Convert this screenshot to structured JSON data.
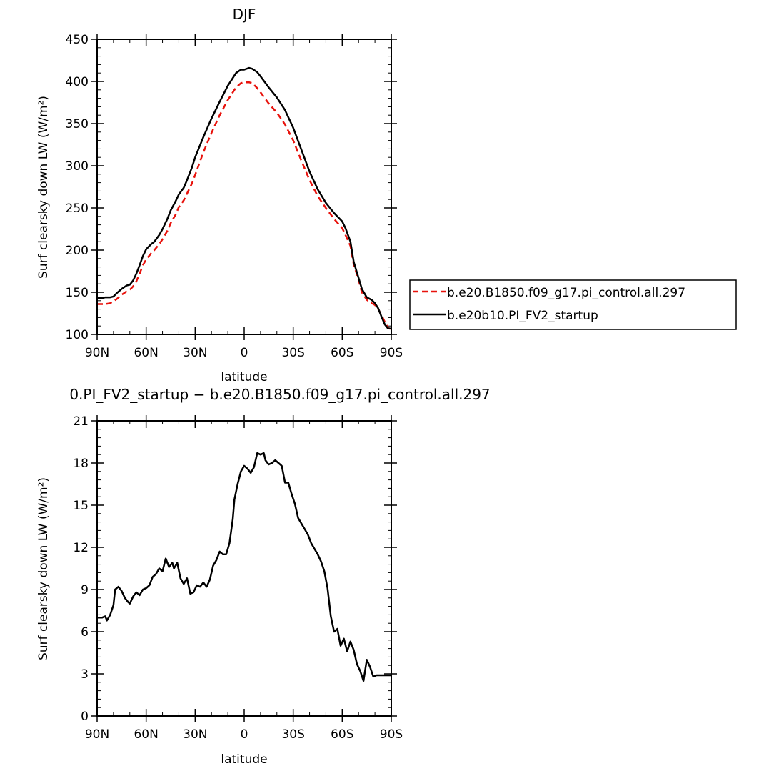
{
  "chart_data": [
    {
      "type": "line",
      "title": "DJF",
      "xlabel": "latitude",
      "ylabel": "Surf clearsky down LW (W/m²)",
      "xlim": [
        90,
        -90
      ],
      "ylim": [
        100,
        450
      ],
      "x_ticks": [
        90,
        60,
        30,
        0,
        -30,
        -60,
        -90
      ],
      "x_tick_labels": [
        "90N",
        "60N",
        "30N",
        "0",
        "30S",
        "60S",
        "90S"
      ],
      "y_ticks": [
        100,
        150,
        200,
        250,
        300,
        350,
        400,
        450
      ],
      "y_tick_labels": [
        "100",
        "150",
        "200",
        "250",
        "300",
        "350",
        "400",
        "450"
      ],
      "legend_position": "right",
      "series": [
        {
          "name": "b.e20.B1850.f09_g17.pi_control.all.297",
          "color": "#e8120c",
          "style": "dashed",
          "x": [
            90,
            85,
            82,
            78,
            75,
            72,
            70,
            68,
            66,
            64,
            62,
            60,
            57,
            55,
            52,
            50,
            47,
            45,
            42,
            40,
            37,
            35,
            32,
            30,
            25,
            20,
            15,
            10,
            5,
            2,
            0,
            -3,
            -5,
            -8,
            -10,
            -15,
            -20,
            -25,
            -30,
            -35,
            -40,
            -45,
            -50,
            -55,
            -60,
            -62,
            -65,
            -67,
            -70,
            -72,
            -75,
            -78,
            -80,
            -82,
            -84,
            -86,
            -88,
            -90
          ],
          "values": [
            136,
            136,
            137,
            142,
            147,
            151,
            153,
            157,
            163,
            172,
            182,
            189,
            196,
            200,
            207,
            213,
            223,
            232,
            242,
            251,
            259,
            267,
            279,
            289,
            316,
            339,
            360,
            378,
            393,
            398,
            399,
            399,
            398,
            392,
            387,
            374,
            363,
            349,
            330,
            306,
            283,
            264,
            250,
            237,
            226,
            218,
            205,
            183,
            165,
            150,
            141,
            137,
            135,
            130,
            123,
            115,
            108,
            106
          ]
        },
        {
          "name": "b.e20b10.PI_FV2_startup",
          "color": "#000000",
          "style": "solid",
          "x": [
            90,
            87,
            85,
            82,
            80,
            78,
            75,
            72,
            70,
            68,
            66,
            64,
            62,
            60,
            57,
            55,
            52,
            50,
            47,
            45,
            42,
            40,
            37,
            35,
            32,
            30,
            25,
            20,
            15,
            10,
            5,
            2,
            0,
            -3,
            -5,
            -8,
            -10,
            -15,
            -20,
            -25,
            -30,
            -35,
            -40,
            -45,
            -50,
            -55,
            -60,
            -62,
            -65,
            -67,
            -70,
            -72,
            -75,
            -78,
            -80,
            -82,
            -84,
            -86,
            -88,
            -90
          ],
          "values": [
            143,
            143,
            144,
            144,
            145,
            149,
            154,
            158,
            159,
            164,
            172,
            182,
            193,
            201,
            207,
            210,
            218,
            225,
            237,
            247,
            258,
            266,
            274,
            283,
            298,
            310,
            334,
            356,
            376,
            395,
            410,
            414,
            414,
            416,
            415,
            411,
            406,
            393,
            381,
            366,
            345,
            319,
            293,
            272,
            256,
            244,
            234,
            226,
            210,
            186,
            167,
            154,
            144,
            141,
            137,
            131,
            121,
            112,
            107,
            107
          ]
        }
      ]
    },
    {
      "type": "line",
      "title": "0.PI_FV2_startup − b.e20.B1850.f09_g17.pi_control.all.297",
      "xlabel": "latitude",
      "ylabel": "Surf clearsky down LW (W/m²)",
      "xlim": [
        90,
        -90
      ],
      "ylim": [
        0,
        21
      ],
      "x_ticks": [
        90,
        60,
        30,
        0,
        -30,
        -60,
        -90
      ],
      "x_tick_labels": [
        "90N",
        "60N",
        "30N",
        "0",
        "30S",
        "60S",
        "90S"
      ],
      "y_ticks": [
        0,
        3,
        6,
        9,
        12,
        15,
        18,
        21
      ],
      "y_tick_labels": [
        "0",
        "3",
        "6",
        "9",
        "12",
        "15",
        "18",
        "21"
      ],
      "series": [
        {
          "color": "#000000",
          "style": "solid",
          "x": [
            90,
            87,
            85,
            84,
            82,
            80,
            79,
            77,
            75,
            73,
            71,
            70,
            68,
            66,
            64,
            62,
            60,
            58,
            56,
            54,
            52,
            50,
            48,
            46,
            44,
            43,
            41,
            39,
            37,
            35,
            33,
            31,
            29,
            27,
            25,
            23,
            21,
            19,
            17,
            15,
            13,
            11,
            9,
            7,
            6,
            4,
            2,
            0,
            -2,
            -4,
            -6,
            -8,
            -10,
            -12,
            -13,
            -15,
            -17,
            -19,
            -21,
            -23,
            -25,
            -27,
            -29,
            -31,
            -33,
            -35,
            -37,
            -39,
            -41,
            -43,
            -45,
            -47,
            -49,
            -51,
            -53,
            -55,
            -57,
            -59,
            -61,
            -63,
            -65,
            -67,
            -69,
            -71,
            -73,
            -75,
            -77,
            -79,
            -81,
            -83,
            -85,
            -87,
            -88,
            -90
          ],
          "values": [
            7.0,
            7.0,
            7.1,
            6.8,
            7.2,
            7.9,
            9.0,
            9.2,
            8.9,
            8.4,
            8.1,
            8.0,
            8.5,
            8.8,
            8.6,
            9.0,
            9.1,
            9.3,
            9.9,
            10.1,
            10.5,
            10.3,
            11.2,
            10.6,
            10.9,
            10.5,
            10.9,
            9.8,
            9.4,
            9.8,
            8.7,
            8.8,
            9.3,
            9.2,
            9.5,
            9.2,
            9.7,
            10.7,
            11.1,
            11.7,
            11.5,
            11.5,
            12.3,
            14.0,
            15.4,
            16.5,
            17.4,
            17.8,
            17.6,
            17.3,
            17.7,
            18.7,
            18.6,
            18.7,
            18.2,
            17.9,
            18.0,
            18.2,
            18.0,
            17.8,
            16.6,
            16.6,
            15.8,
            15.1,
            14.1,
            13.7,
            13.3,
            12.9,
            12.3,
            11.9,
            11.5,
            11.0,
            10.3,
            9.1,
            7.1,
            6.0,
            6.2,
            5.0,
            5.5,
            4.6,
            5.3,
            4.7,
            3.7,
            3.2,
            2.5,
            4.0,
            3.5,
            2.8,
            2.9,
            2.9,
            2.9,
            2.9,
            2.9,
            2.9
          ]
        }
      ]
    }
  ]
}
